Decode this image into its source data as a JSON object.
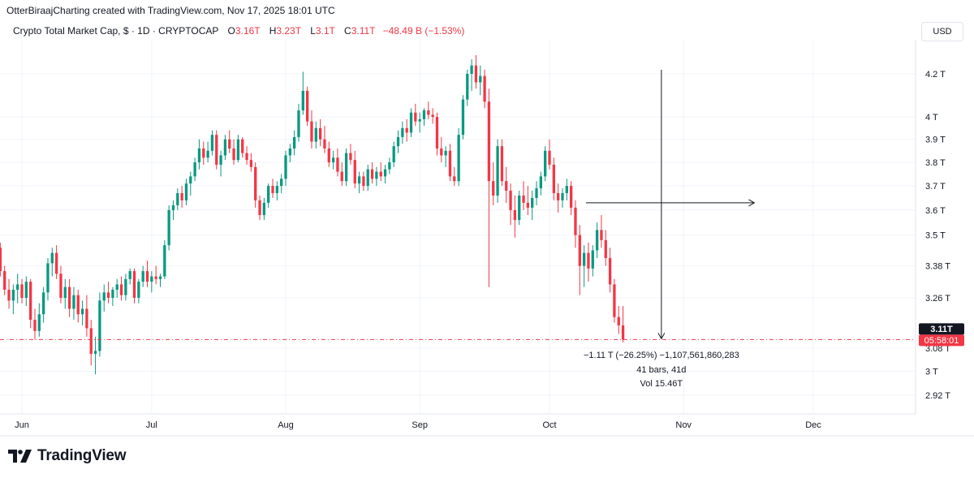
{
  "header": {
    "caption": "OtterBiraajCharting created with TradingView.com, Nov 17, 2025 18:01 UTC"
  },
  "legend": {
    "symbol": "Crypto Total Market Cap, $ · 1D · CRYPTOCAP",
    "open_key": "O",
    "open": "3.16T",
    "high_key": "H",
    "high": "3.23T",
    "low_key": "L",
    "low": "3.1T",
    "close_key": "C",
    "close": "3.11T",
    "change": "−48.49 B (−1.53%)"
  },
  "currency_label": "USD",
  "price_badge": {
    "price": "3.11T",
    "countdown": "05:58:01"
  },
  "measure": {
    "line1": "−1.11 T (−26.25%) −1,107,561,860,283",
    "line2": "41 bars, 41d",
    "line3": "Vol 15.46T"
  },
  "brand": {
    "name": "TradingView",
    "logo_icon": "tradingview-logo-icon"
  },
  "colors": {
    "up": "#089981",
    "down": "#f23645",
    "grid": "#f0f3fa",
    "text": "#131722"
  },
  "chart_data": {
    "type": "candlestick",
    "y_scale": "log",
    "y_ticks": [
      {
        "label": "4.2 T",
        "value": 4.2
      },
      {
        "label": "4 T",
        "value": 4.0
      },
      {
        "label": "3.9 T",
        "value": 3.9
      },
      {
        "label": "3.8 T",
        "value": 3.8
      },
      {
        "label": "3.7 T",
        "value": 3.7
      },
      {
        "label": "3.6 T",
        "value": 3.6
      },
      {
        "label": "3.5 T",
        "value": 3.5
      },
      {
        "label": "3.38 T",
        "value": 3.38
      },
      {
        "label": "3.26 T",
        "value": 3.26
      },
      {
        "label": "3.08 T",
        "value": 3.08
      },
      {
        "label": "3 T",
        "value": 3.0
      },
      {
        "label": "2.92 T",
        "value": 2.92
      }
    ],
    "x_ticks": [
      {
        "label": "Jun",
        "date": "2025-06-01"
      },
      {
        "label": "Jul",
        "date": "2025-07-01"
      },
      {
        "label": "Aug",
        "date": "2025-08-01"
      },
      {
        "label": "Sep",
        "date": "2025-09-01"
      },
      {
        "label": "Oct",
        "date": "2025-10-01"
      },
      {
        "label": "Nov",
        "date": "2025-11-01"
      },
      {
        "label": "Dec",
        "date": "2025-12-01"
      }
    ],
    "start_date": "2025-05-27",
    "last_price": 3.11,
    "measure_from_date": "2025-10-28",
    "measure_to_date": "2025-11-17",
    "measure_level": 3.63,
    "ohlc": [
      [
        3.45,
        3.47,
        3.34,
        3.36
      ],
      [
        3.36,
        3.38,
        3.27,
        3.29
      ],
      [
        3.29,
        3.33,
        3.22,
        3.25
      ],
      [
        3.25,
        3.31,
        3.2,
        3.29
      ],
      [
        3.29,
        3.35,
        3.24,
        3.31
      ],
      [
        3.31,
        3.33,
        3.24,
        3.26
      ],
      [
        3.26,
        3.34,
        3.23,
        3.32
      ],
      [
        3.32,
        3.33,
        3.15,
        3.18
      ],
      [
        3.18,
        3.22,
        3.11,
        3.14
      ],
      [
        3.14,
        3.24,
        3.12,
        3.2
      ],
      [
        3.2,
        3.3,
        3.17,
        3.28
      ],
      [
        3.28,
        3.41,
        3.25,
        3.39
      ],
      [
        3.39,
        3.45,
        3.34,
        3.43
      ],
      [
        3.43,
        3.46,
        3.33,
        3.35
      ],
      [
        3.35,
        3.38,
        3.24,
        3.26
      ],
      [
        3.26,
        3.33,
        3.22,
        3.3
      ],
      [
        3.3,
        3.33,
        3.19,
        3.22
      ],
      [
        3.22,
        3.3,
        3.18,
        3.27
      ],
      [
        3.27,
        3.29,
        3.17,
        3.2
      ],
      [
        3.2,
        3.25,
        3.16,
        3.22
      ],
      [
        3.22,
        3.27,
        3.12,
        3.15
      ],
      [
        3.15,
        3.18,
        3.02,
        3.06
      ],
      [
        3.06,
        3.12,
        2.99,
        3.07
      ],
      [
        3.07,
        3.28,
        3.05,
        3.25
      ],
      [
        3.25,
        3.31,
        3.21,
        3.28
      ],
      [
        3.28,
        3.32,
        3.24,
        3.26
      ],
      [
        3.26,
        3.3,
        3.23,
        3.29
      ],
      [
        3.29,
        3.33,
        3.26,
        3.31
      ],
      [
        3.31,
        3.34,
        3.25,
        3.27
      ],
      [
        3.27,
        3.35,
        3.25,
        3.33
      ],
      [
        3.33,
        3.37,
        3.31,
        3.36
      ],
      [
        3.36,
        3.37,
        3.24,
        3.26
      ],
      [
        3.26,
        3.33,
        3.24,
        3.32
      ],
      [
        3.32,
        3.38,
        3.3,
        3.36
      ],
      [
        3.36,
        3.4,
        3.3,
        3.32
      ],
      [
        3.32,
        3.36,
        3.28,
        3.34
      ],
      [
        3.34,
        3.38,
        3.31,
        3.33
      ],
      [
        3.33,
        3.35,
        3.3,
        3.34
      ],
      [
        3.34,
        3.48,
        3.33,
        3.46
      ],
      [
        3.46,
        3.62,
        3.44,
        3.6
      ],
      [
        3.6,
        3.64,
        3.56,
        3.62
      ],
      [
        3.62,
        3.69,
        3.6,
        3.67
      ],
      [
        3.67,
        3.7,
        3.61,
        3.64
      ],
      [
        3.64,
        3.73,
        3.62,
        3.71
      ],
      [
        3.71,
        3.76,
        3.66,
        3.74
      ],
      [
        3.74,
        3.82,
        3.72,
        3.8
      ],
      [
        3.8,
        3.9,
        3.77,
        3.86
      ],
      [
        3.86,
        3.89,
        3.79,
        3.82
      ],
      [
        3.82,
        3.89,
        3.8,
        3.85
      ],
      [
        3.85,
        3.94,
        3.83,
        3.92
      ],
      [
        3.92,
        3.94,
        3.77,
        3.79
      ],
      [
        3.79,
        3.85,
        3.74,
        3.83
      ],
      [
        3.83,
        3.92,
        3.81,
        3.9
      ],
      [
        3.9,
        3.94,
        3.84,
        3.86
      ],
      [
        3.86,
        3.9,
        3.79,
        3.81
      ],
      [
        3.81,
        3.92,
        3.8,
        3.9
      ],
      [
        3.9,
        3.91,
        3.82,
        3.84
      ],
      [
        3.84,
        3.87,
        3.79,
        3.81
      ],
      [
        3.81,
        3.84,
        3.76,
        3.78
      ],
      [
        3.78,
        3.8,
        3.61,
        3.64
      ],
      [
        3.64,
        3.66,
        3.56,
        3.58
      ],
      [
        3.58,
        3.65,
        3.56,
        3.63
      ],
      [
        3.63,
        3.71,
        3.61,
        3.7
      ],
      [
        3.7,
        3.73,
        3.65,
        3.67
      ],
      [
        3.67,
        3.72,
        3.64,
        3.7
      ],
      [
        3.7,
        3.75,
        3.67,
        3.73
      ],
      [
        3.73,
        3.85,
        3.7,
        3.83
      ],
      [
        3.83,
        3.88,
        3.8,
        3.86
      ],
      [
        3.86,
        3.94,
        3.83,
        3.91
      ],
      [
        3.91,
        4.06,
        3.89,
        4.03
      ],
      [
        4.03,
        4.21,
        4.01,
        4.12
      ],
      [
        4.12,
        4.14,
        3.96,
        3.98
      ],
      [
        3.98,
        4.03,
        3.86,
        3.89
      ],
      [
        3.89,
        3.98,
        3.86,
        3.95
      ],
      [
        3.95,
        3.99,
        3.87,
        3.9
      ],
      [
        3.9,
        3.96,
        3.84,
        3.86
      ],
      [
        3.86,
        3.89,
        3.78,
        3.8
      ],
      [
        3.8,
        3.85,
        3.77,
        3.82
      ],
      [
        3.82,
        3.86,
        3.74,
        3.76
      ],
      [
        3.76,
        3.8,
        3.7,
        3.72
      ],
      [
        3.72,
        3.86,
        3.7,
        3.84
      ],
      [
        3.84,
        3.88,
        3.79,
        3.81
      ],
      [
        3.81,
        3.85,
        3.69,
        3.71
      ],
      [
        3.71,
        3.76,
        3.67,
        3.74
      ],
      [
        3.74,
        3.76,
        3.68,
        3.7
      ],
      [
        3.7,
        3.79,
        3.68,
        3.77
      ],
      [
        3.77,
        3.8,
        3.71,
        3.73
      ],
      [
        3.73,
        3.78,
        3.7,
        3.76
      ],
      [
        3.76,
        3.8,
        3.72,
        3.74
      ],
      [
        3.74,
        3.79,
        3.71,
        3.77
      ],
      [
        3.77,
        3.82,
        3.75,
        3.8
      ],
      [
        3.8,
        3.89,
        3.78,
        3.87
      ],
      [
        3.87,
        3.94,
        3.84,
        3.91
      ],
      [
        3.91,
        3.98,
        3.88,
        3.95
      ],
      [
        3.95,
        3.99,
        3.89,
        3.93
      ],
      [
        3.93,
        4.04,
        3.91,
        4.02
      ],
      [
        4.02,
        4.06,
        3.96,
        3.98
      ],
      [
        3.98,
        4.02,
        3.93,
        3.99
      ],
      [
        3.99,
        4.04,
        3.96,
        4.03
      ],
      [
        4.03,
        4.07,
        3.99,
        4.01
      ],
      [
        4.01,
        4.04,
        3.97,
        4.0
      ],
      [
        4.0,
        4.02,
        3.83,
        3.86
      ],
      [
        3.86,
        3.91,
        3.8,
        3.83
      ],
      [
        3.83,
        3.87,
        3.78,
        3.85
      ],
      [
        3.85,
        3.88,
        3.72,
        3.74
      ],
      [
        3.74,
        3.78,
        3.7,
        3.72
      ],
      [
        3.72,
        3.95,
        3.7,
        3.92
      ],
      [
        3.92,
        4.1,
        3.9,
        4.08
      ],
      [
        4.08,
        4.22,
        4.05,
        4.2
      ],
      [
        4.2,
        4.27,
        4.12,
        4.24
      ],
      [
        4.24,
        4.29,
        4.13,
        4.16
      ],
      [
        4.16,
        4.24,
        4.1,
        4.19
      ],
      [
        4.19,
        4.22,
        4.04,
        4.07
      ],
      [
        4.07,
        4.13,
        3.3,
        3.72
      ],
      [
        3.72,
        3.8,
        3.62,
        3.66
      ],
      [
        3.66,
        3.9,
        3.63,
        3.87
      ],
      [
        3.87,
        3.9,
        3.7,
        3.72
      ],
      [
        3.72,
        3.78,
        3.63,
        3.68
      ],
      [
        3.68,
        3.71,
        3.54,
        3.6
      ],
      [
        3.6,
        3.66,
        3.49,
        3.56
      ],
      [
        3.56,
        3.68,
        3.54,
        3.66
      ],
      [
        3.66,
        3.72,
        3.6,
        3.63
      ],
      [
        3.63,
        3.7,
        3.58,
        3.61
      ],
      [
        3.61,
        3.68,
        3.56,
        3.65
      ],
      [
        3.65,
        3.72,
        3.62,
        3.69
      ],
      [
        3.69,
        3.76,
        3.66,
        3.74
      ],
      [
        3.74,
        3.87,
        3.72,
        3.85
      ],
      [
        3.85,
        3.9,
        3.77,
        3.79
      ],
      [
        3.79,
        3.82,
        3.64,
        3.67
      ],
      [
        3.67,
        3.71,
        3.59,
        3.64
      ],
      [
        3.64,
        3.69,
        3.61,
        3.67
      ],
      [
        3.67,
        3.73,
        3.64,
        3.7
      ],
      [
        3.7,
        3.72,
        3.58,
        3.61
      ],
      [
        3.61,
        3.64,
        3.45,
        3.5
      ],
      [
        3.5,
        3.54,
        3.27,
        3.38
      ],
      [
        3.38,
        3.46,
        3.3,
        3.43
      ],
      [
        3.43,
        3.47,
        3.32,
        3.37
      ],
      [
        3.37,
        3.46,
        3.34,
        3.44
      ],
      [
        3.44,
        3.55,
        3.41,
        3.52
      ],
      [
        3.52,
        3.58,
        3.45,
        3.48
      ],
      [
        3.48,
        3.52,
        3.38,
        3.41
      ],
      [
        3.41,
        3.45,
        3.28,
        3.31
      ],
      [
        3.31,
        3.33,
        3.17,
        3.19
      ],
      [
        3.19,
        3.23,
        3.13,
        3.16
      ],
      [
        3.16,
        3.23,
        3.1,
        3.11
      ]
    ]
  }
}
